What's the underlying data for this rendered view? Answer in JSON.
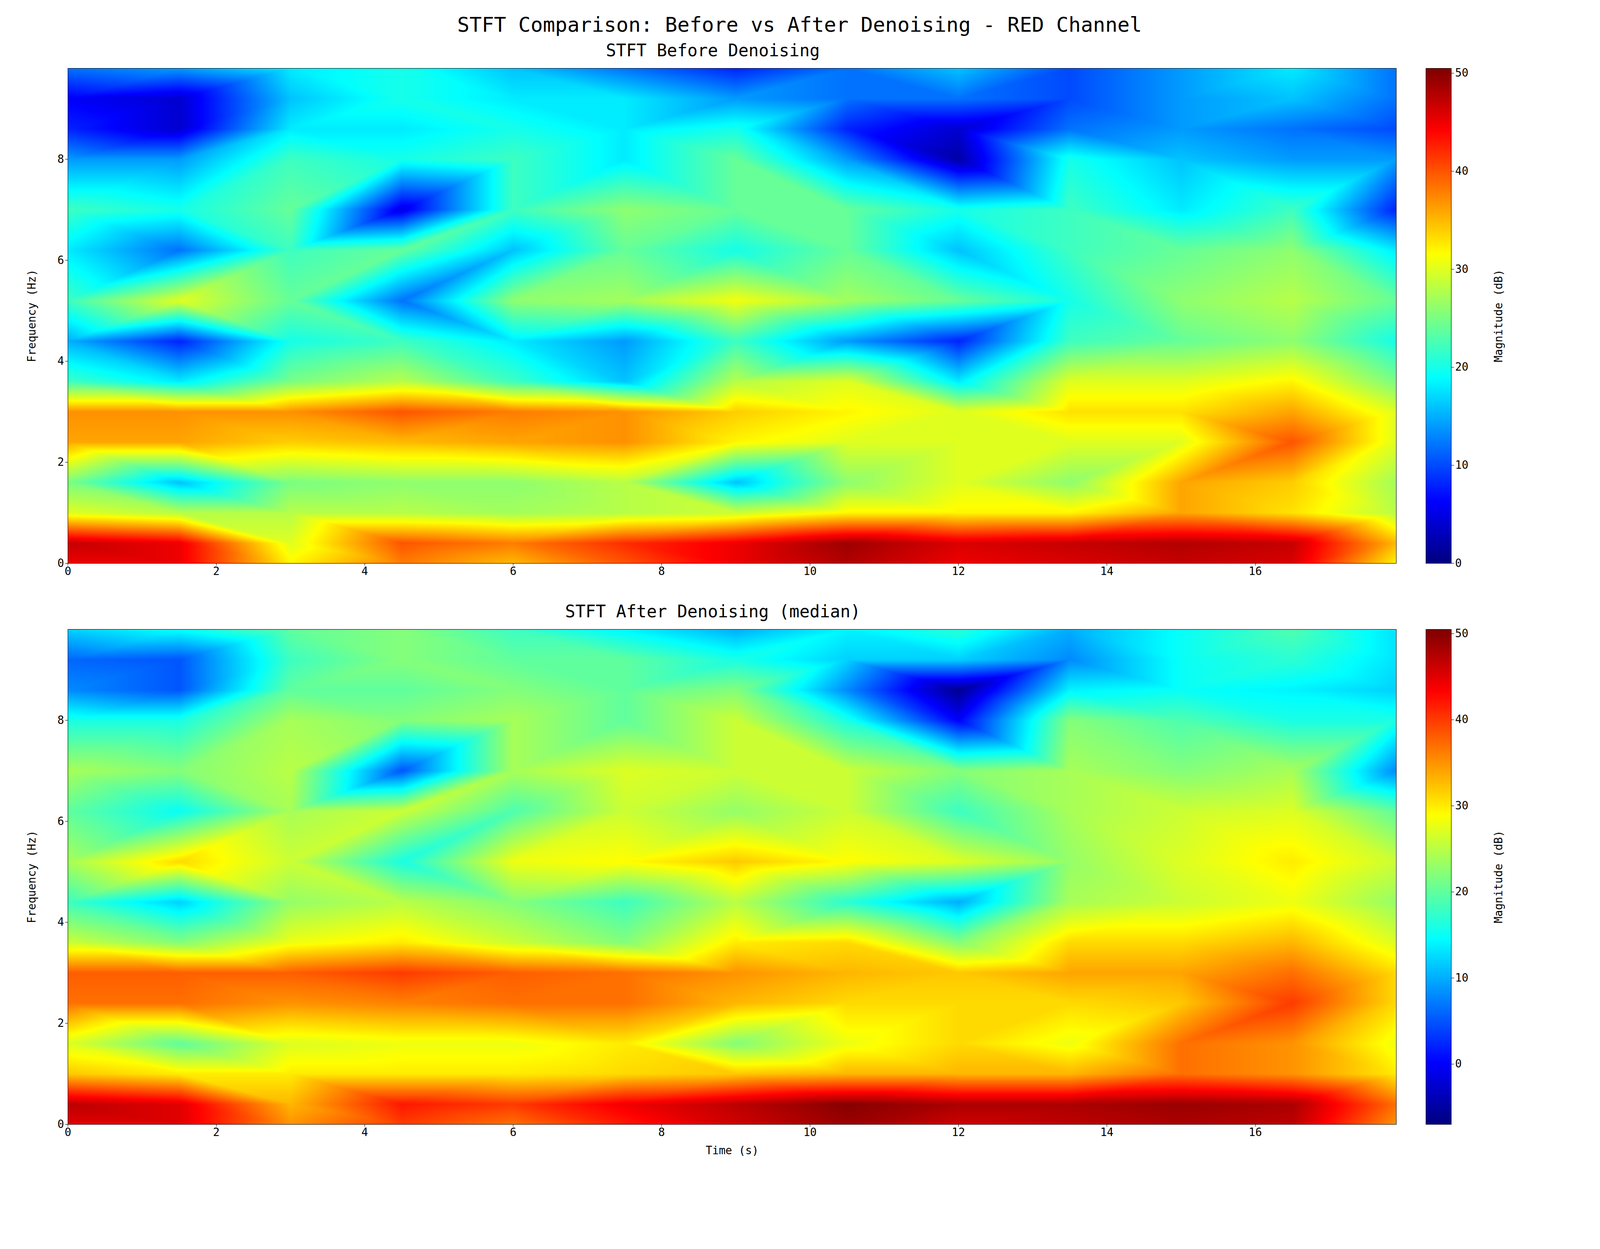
{
  "figure_title": "STFT Comparison: Before vs After Denoising - RED Channel",
  "chart_data": [
    {
      "type": "heatmap",
      "title": "STFT Before Denoising",
      "y_label": "Frequency (Hz)",
      "color": "jet",
      "xlim": [
        0,
        17.9
      ],
      "ylim": [
        0,
        9.8
      ],
      "xticks": [
        0,
        2,
        4,
        6,
        8,
        10,
        12,
        14,
        16
      ],
      "yticks": [
        0,
        2,
        4,
        6,
        8
      ],
      "x": [
        0,
        1.5,
        3,
        4.5,
        6,
        7.5,
        9,
        10.5,
        12,
        13.5,
        15,
        16.5,
        17.9
      ],
      "y": [
        0,
        0.4,
        1.0,
        1.6,
        2.4,
        3.0,
        3.6,
        4.4,
        5.2,
        6.2,
        7.0,
        8.0,
        8.6,
        9.2,
        9.8
      ],
      "z": [
        [
          45,
          45,
          32,
          38,
          35,
          40,
          45,
          48,
          45,
          46,
          47,
          46,
          32
        ],
        [
          47,
          45,
          30,
          40,
          38,
          42,
          45,
          49,
          46,
          47,
          48,
          47,
          35
        ],
        [
          30,
          28,
          28,
          28,
          27,
          28,
          29,
          32,
          32,
          32,
          36,
          33,
          28
        ],
        [
          25,
          16,
          25,
          26,
          26,
          28,
          16,
          26,
          30,
          26,
          36,
          34,
          27
        ],
        [
          36,
          36,
          34,
          35,
          36,
          37,
          32,
          30,
          30,
          30,
          30,
          40,
          30
        ],
        [
          37,
          37,
          37,
          40,
          38,
          37,
          34,
          32,
          30,
          33,
          33,
          36,
          30
        ],
        [
          22,
          18,
          25,
          28,
          22,
          16,
          28,
          30,
          18,
          30,
          30,
          32,
          25
        ],
        [
          15,
          8,
          20,
          22,
          18,
          14,
          22,
          14,
          8,
          22,
          24,
          26,
          20
        ],
        [
          22,
          30,
          24,
          12,
          26,
          27,
          31,
          27,
          24,
          20,
          26,
          28,
          24
        ],
        [
          18,
          12,
          22,
          24,
          16,
          24,
          20,
          24,
          16,
          22,
          24,
          26,
          18
        ],
        [
          22,
          20,
          24,
          5,
          22,
          26,
          24,
          24,
          20,
          22,
          18,
          22,
          8
        ],
        [
          14,
          14,
          22,
          20,
          22,
          18,
          24,
          14,
          2,
          20,
          16,
          14,
          14
        ],
        [
          8,
          4,
          18,
          18,
          20,
          18,
          20,
          8,
          4,
          12,
          14,
          12,
          10
        ],
        [
          6,
          4,
          16,
          20,
          18,
          18,
          14,
          12,
          12,
          10,
          14,
          16,
          12
        ],
        [
          12,
          14,
          18,
          20,
          16,
          12,
          8,
          12,
          16,
          10,
          14,
          18,
          12
        ]
      ],
      "colorbar": {
        "label": "Magnitude (dB)",
        "range": [
          0,
          50.5
        ],
        "ticks": [
          0,
          10,
          20,
          30,
          40,
          50
        ]
      }
    },
    {
      "type": "heatmap",
      "title": "STFT After Denoising (median)",
      "x_label": "Time (s)",
      "y_label": "Frequency (Hz)",
      "color": "jet",
      "xlim": [
        0,
        17.9
      ],
      "ylim": [
        0,
        9.8
      ],
      "xticks": [
        0,
        2,
        4,
        6,
        8,
        10,
        12,
        14,
        16
      ],
      "yticks": [
        0,
        2,
        4,
        6,
        8
      ],
      "x": [
        0,
        1.5,
        3,
        4.5,
        6,
        7.5,
        9,
        10.5,
        12,
        13.5,
        15,
        16.5,
        17.9
      ],
      "y": [
        0,
        0.4,
        1.0,
        1.6,
        2.4,
        3.0,
        3.6,
        4.4,
        5.2,
        6.2,
        7.0,
        8.0,
        8.6,
        9.2,
        9.8
      ],
      "z": [
        [
          45,
          45,
          35,
          40,
          37,
          42,
          46,
          49,
          46,
          47,
          48,
          47,
          35
        ],
        [
          47,
          45,
          33,
          42,
          40,
          44,
          47,
          50,
          48,
          48,
          49,
          48,
          37
        ],
        [
          32,
          30,
          30,
          30,
          30,
          31,
          32,
          33,
          33,
          33,
          37,
          35,
          30
        ],
        [
          27,
          20,
          27,
          28,
          28,
          30,
          22,
          28,
          31,
          28,
          37,
          35,
          28
        ],
        [
          37,
          37,
          35,
          36,
          37,
          37,
          33,
          31,
          31,
          31,
          32,
          40,
          31
        ],
        [
          38,
          38,
          38,
          40,
          38,
          37,
          35,
          33,
          32,
          34,
          34,
          37,
          31
        ],
        [
          26,
          22,
          28,
          30,
          26,
          22,
          30,
          31,
          22,
          31,
          31,
          33,
          27
        ],
        [
          18,
          12,
          23,
          25,
          22,
          18,
          25,
          17,
          10,
          24,
          26,
          28,
          23
        ],
        [
          24,
          31,
          26,
          16,
          28,
          29,
          32,
          29,
          27,
          23,
          27,
          30,
          26
        ],
        [
          20,
          15,
          24,
          26,
          19,
          26,
          23,
          26,
          18,
          24,
          26,
          27,
          20
        ],
        [
          24,
          22,
          25,
          5,
          24,
          27,
          26,
          26,
          22,
          24,
          22,
          24,
          8
        ],
        [
          16,
          16,
          24,
          22,
          24,
          20,
          26,
          16,
          0,
          22,
          19,
          16,
          16
        ],
        [
          8,
          5,
          20,
          20,
          22,
          20,
          22,
          8,
          -6,
          14,
          15,
          14,
          12
        ],
        [
          6,
          5,
          18,
          22,
          20,
          20,
          16,
          12,
          12,
          8,
          15,
          17,
          13
        ],
        [
          12,
          15,
          20,
          22,
          18,
          14,
          10,
          14,
          17,
          10,
          15,
          19,
          13
        ]
      ],
      "colorbar": {
        "label": "Magnitude (dB)",
        "range": [
          -7,
          50.5
        ],
        "ticks": [
          0,
          10,
          20,
          30,
          40,
          50
        ]
      }
    }
  ]
}
